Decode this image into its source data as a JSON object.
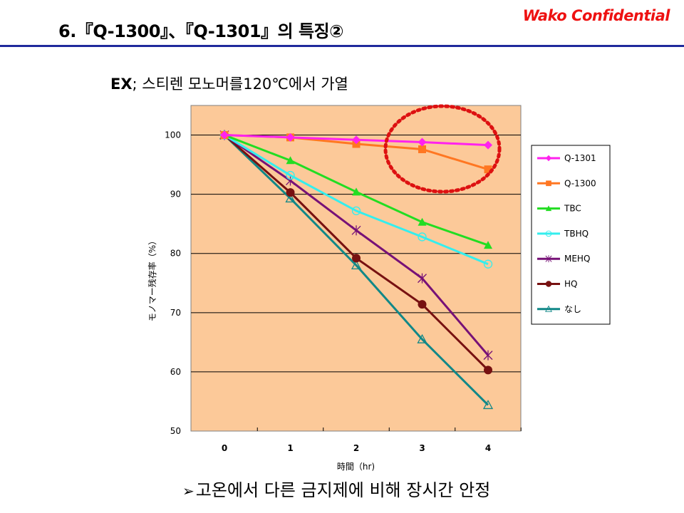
{
  "slide": {
    "title": "6.『Q-1300』、『Q-1301』의 특징②",
    "confidential": "Wako Confidential",
    "subtitle_bold": "EX",
    "subtitle_rest": "; 스티렌 모노머를120℃에서 가열",
    "footer_arrow": "➢",
    "footer_text": "고온에서 다른 금지제에 비해 장시간 안정"
  },
  "colors": {
    "title_rule": "#1f2a9c",
    "confidential": "#ee1111",
    "plot_bg": "#fcc999",
    "highlight_circle": "#dd1111"
  },
  "chart_data": {
    "type": "line",
    "xlabel": "時間（hr)",
    "ylabel": "モノマー残存率（%）",
    "x": [
      0,
      1,
      2,
      3,
      4
    ],
    "x_tick_labels": [
      "0",
      "1",
      "2",
      "3",
      "4"
    ],
    "ylim": [
      50,
      105
    ],
    "y_ticks": [
      50,
      60,
      70,
      80,
      90,
      100
    ],
    "grid": "horizontal",
    "legend_position": "right",
    "highlight": "dotted red ellipse around Q-1301 and Q-1300 at hours 3-4",
    "series": [
      {
        "name": "Q-1301",
        "color": "#ff22ee",
        "marker": "diamond",
        "values": [
          100,
          99.6,
          99.2,
          98.8,
          98.3
        ]
      },
      {
        "name": "Q-1300",
        "color": "#ff7722",
        "marker": "square",
        "values": [
          100,
          99.6,
          98.5,
          97.6,
          94.2
        ]
      },
      {
        "name": "TBC",
        "color": "#22dd22",
        "marker": "triangle",
        "values": [
          100,
          95.7,
          90.4,
          85.3,
          81.4
        ]
      },
      {
        "name": "TBHQ",
        "color": "#33eeee",
        "marker": "circle-open",
        "values": [
          100,
          93.2,
          87.2,
          82.8,
          78.2
        ]
      },
      {
        "name": "MEHQ",
        "color": "#771177",
        "marker": "star",
        "values": [
          100,
          92.3,
          83.9,
          75.8,
          62.8
        ]
      },
      {
        "name": "HQ",
        "color": "#771111",
        "marker": "circle",
        "values": [
          100,
          90.3,
          79.2,
          71.4,
          60.3
        ]
      },
      {
        "name": "なし",
        "color": "#118888",
        "marker": "triangle-open",
        "values": [
          100,
          89.3,
          78.0,
          65.5,
          54.4
        ]
      }
    ]
  }
}
